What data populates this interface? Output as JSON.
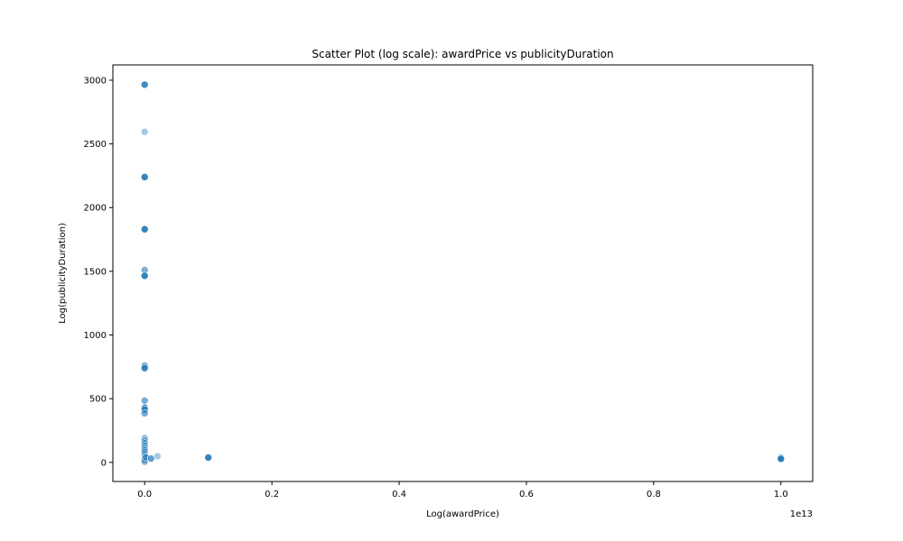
{
  "chart_data": {
    "type": "scatter",
    "title": "Scatter Plot (log scale): awardPrice vs publicityDuration",
    "xlabel": "Log(awardPrice)",
    "ylabel": "Log(publicityDuration)",
    "x_offset_label": "1e13",
    "xlim": [
      -0.05,
      1.05
    ],
    "ylim": [
      -150,
      3120
    ],
    "x_ticks": [
      0.0,
      0.2,
      0.4,
      0.6,
      0.8,
      1.0
    ],
    "x_tick_labels": [
      "0.0",
      "0.2",
      "0.4",
      "0.6",
      "0.8",
      "1.0"
    ],
    "y_ticks": [
      0,
      500,
      1000,
      1500,
      2000,
      2500,
      3000
    ],
    "y_tick_labels": [
      "0",
      "500",
      "1000",
      "1500",
      "2000",
      "2500",
      "3000"
    ],
    "grid": false,
    "legend": false,
    "color": "#1f77b4",
    "points": [
      {
        "x": 0.0,
        "y": 2965,
        "a": 0.85
      },
      {
        "x": 0.0,
        "y": 2595,
        "a": 0.4
      },
      {
        "x": 0.0,
        "y": 2240,
        "a": 0.9
      },
      {
        "x": 0.0,
        "y": 1830,
        "a": 0.9
      },
      {
        "x": 0.0,
        "y": 1510,
        "a": 0.6
      },
      {
        "x": 0.0,
        "y": 1465,
        "a": 0.9
      },
      {
        "x": 0.0,
        "y": 760,
        "a": 0.6
      },
      {
        "x": 0.0,
        "y": 740,
        "a": 0.85
      },
      {
        "x": 0.0,
        "y": 485,
        "a": 0.6
      },
      {
        "x": 0.0,
        "y": 430,
        "a": 0.8
      },
      {
        "x": 0.0,
        "y": 415,
        "a": 0.8
      },
      {
        "x": 0.0,
        "y": 385,
        "a": 0.6
      },
      {
        "x": 0.0,
        "y": 190,
        "a": 0.5
      },
      {
        "x": 0.0,
        "y": 170,
        "a": 0.6
      },
      {
        "x": 0.0,
        "y": 150,
        "a": 0.6
      },
      {
        "x": 0.0,
        "y": 130,
        "a": 0.6
      },
      {
        "x": 0.0,
        "y": 110,
        "a": 0.6
      },
      {
        "x": 0.0,
        "y": 95,
        "a": 0.7
      },
      {
        "x": 0.0,
        "y": 80,
        "a": 0.7
      },
      {
        "x": 0.0,
        "y": 65,
        "a": 0.7
      },
      {
        "x": 0.0,
        "y": 50,
        "a": 0.7
      },
      {
        "x": 0.0,
        "y": 35,
        "a": 0.7
      },
      {
        "x": 0.0,
        "y": 20,
        "a": 0.6
      },
      {
        "x": 0.0,
        "y": 5,
        "a": 0.5
      },
      {
        "x": 0.002,
        "y": 40,
        "a": 0.6
      },
      {
        "x": 0.01,
        "y": 30,
        "a": 0.7
      },
      {
        "x": 0.02,
        "y": 48,
        "a": 0.4
      },
      {
        "x": 0.1,
        "y": 38,
        "a": 0.9
      },
      {
        "x": 1.0,
        "y": 38,
        "a": 0.5
      },
      {
        "x": 1.0,
        "y": 28,
        "a": 0.9
      }
    ]
  }
}
